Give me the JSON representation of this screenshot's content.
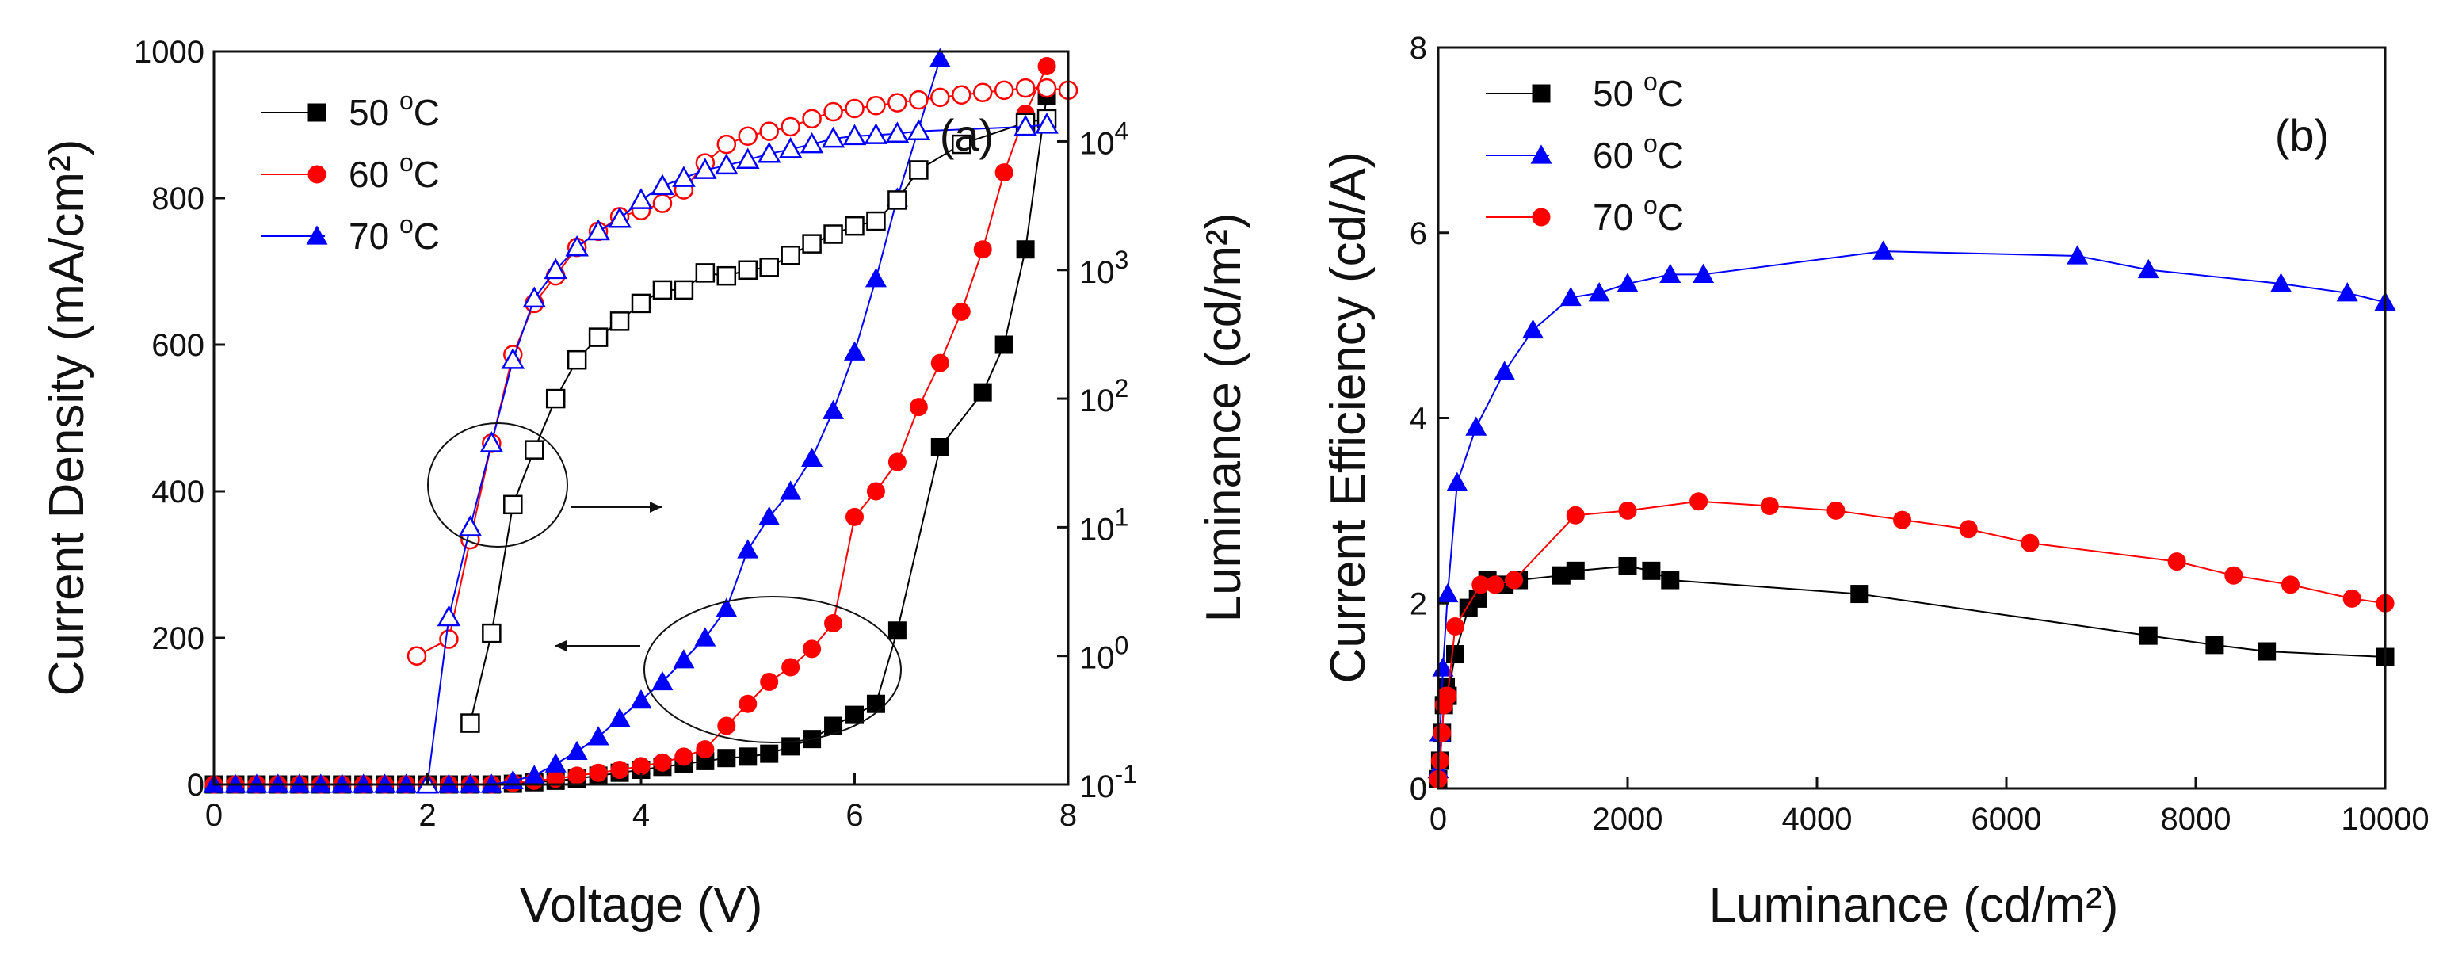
{
  "chart_data": [
    {
      "panel": "(a)",
      "type": "line",
      "xlabel": "Voltage (V)",
      "ylabel_left": "Current Density (mA/cm²)",
      "ylabel_right": "Luminance (cd/m²)",
      "xlim": [
        0,
        8
      ],
      "ylim_left": [
        0,
        1000
      ],
      "ylim_right_log": [
        0.1,
        50000
      ],
      "x_ticks": [
        "0",
        "2",
        "4",
        "6",
        "8"
      ],
      "y_left_ticks": [
        "0",
        "200",
        "400",
        "600",
        "800",
        "1000"
      ],
      "y_right_ticks": [
        {
          "base": "10",
          "exp": "-1",
          "value": 0.1
        },
        {
          "base": "10",
          "exp": "0",
          "value": 1
        },
        {
          "base": "10",
          "exp": "1",
          "value": 10
        },
        {
          "base": "10",
          "exp": "2",
          "value": 100
        },
        {
          "base": "10",
          "exp": "3",
          "value": 1000
        },
        {
          "base": "10",
          "exp": "4",
          "value": 10000
        }
      ],
      "legend": [
        {
          "label": "50 ",
          "sup": "o",
          "unit": "C",
          "color": "#000000",
          "marker": "square"
        },
        {
          "label": "60 ",
          "sup": "o",
          "unit": "C",
          "color": "#ff0000",
          "marker": "circle"
        },
        {
          "label": "70 ",
          "sup": "o",
          "unit": "C",
          "color": "#0000ff",
          "marker": "triangle"
        }
      ],
      "series_current_density": [
        {
          "name": "50 oC",
          "color": "#000000",
          "marker": "square",
          "x": [
            0,
            0.2,
            0.4,
            0.6,
            0.8,
            1.0,
            1.2,
            1.4,
            1.6,
            1.8,
            2.0,
            2.2,
            2.4,
            2.6,
            2.8,
            3.0,
            3.2,
            3.4,
            3.6,
            3.8,
            4.0,
            4.2,
            4.4,
            4.6,
            4.8,
            5.0,
            5.2,
            5.4,
            5.6,
            5.8,
            6.0,
            6.2,
            6.4,
            6.8,
            7.2,
            7.4,
            7.6,
            7.8
          ],
          "y": [
            0,
            0,
            0,
            0,
            0,
            0,
            0,
            0,
            0,
            0,
            0,
            0,
            0,
            0,
            1,
            3,
            5,
            8,
            12,
            16,
            20,
            24,
            28,
            32,
            36,
            38,
            42,
            52,
            62,
            80,
            95,
            110,
            210,
            460,
            535,
            600,
            730,
            940
          ]
        },
        {
          "name": "60 oC",
          "color": "#ff0000",
          "marker": "circle",
          "x": [
            0,
            0.2,
            0.4,
            0.6,
            0.8,
            1.0,
            1.2,
            1.4,
            1.6,
            1.8,
            2.0,
            2.2,
            2.4,
            2.6,
            2.8,
            3.0,
            3.2,
            3.4,
            3.6,
            3.8,
            4.0,
            4.2,
            4.4,
            4.6,
            4.8,
            5.0,
            5.2,
            5.4,
            5.6,
            5.8,
            6.0,
            6.2,
            6.4,
            6.6,
            6.8,
            7.0,
            7.2,
            7.4,
            7.6,
            7.8
          ],
          "y": [
            0,
            0,
            0,
            0,
            0,
            0,
            0,
            0,
            0,
            0,
            0,
            0,
            0,
            0,
            2,
            5,
            8,
            12,
            16,
            20,
            25,
            30,
            38,
            48,
            80,
            110,
            140,
            160,
            185,
            220,
            365,
            400,
            440,
            515,
            575,
            645,
            730,
            835,
            915,
            980
          ]
        },
        {
          "name": "70 oC",
          "color": "#0000ff",
          "marker": "triangle",
          "x": [
            0,
            0.2,
            0.4,
            0.6,
            0.8,
            1.0,
            1.2,
            1.4,
            1.6,
            1.8,
            2.0,
            2.2,
            2.4,
            2.6,
            2.8,
            3.0,
            3.2,
            3.4,
            3.6,
            3.8,
            4.0,
            4.2,
            4.4,
            4.6,
            4.8,
            5.0,
            5.2,
            5.4,
            5.6,
            5.8,
            6.0,
            6.2,
            6.4,
            6.8
          ],
          "y": [
            0,
            0,
            0,
            0,
            0,
            0,
            0,
            0,
            0,
            0,
            0,
            0,
            0,
            0,
            5,
            12,
            28,
            45,
            65,
            90,
            115,
            140,
            170,
            200,
            240,
            320,
            365,
            400,
            445,
            510,
            590,
            690,
            800,
            990
          ]
        }
      ],
      "series_luminance": [
        {
          "name": "50 oC",
          "color": "#000000",
          "marker": "square-open",
          "x": [
            2.4,
            2.6,
            2.8,
            3.0,
            3.2,
            3.4,
            3.6,
            3.8,
            4.0,
            4.2,
            4.4,
            4.6,
            4.8,
            5.0,
            5.2,
            5.4,
            5.6,
            5.8,
            6.0,
            6.2,
            6.4,
            6.6,
            7.0,
            7.6,
            7.8
          ],
          "y": [
            0.3,
            1.5,
            15,
            40,
            100,
            200,
            300,
            400,
            550,
            700,
            700,
            950,
            900,
            1000,
            1050,
            1300,
            1600,
            1900,
            2200,
            2400,
            3500,
            6000,
            9500,
            14000,
            15000
          ]
        },
        {
          "name": "60 oC",
          "color": "#ff0000",
          "marker": "circle-open",
          "x": [
            1.9,
            2.2,
            2.4,
            2.6,
            2.8,
            3.0,
            3.2,
            3.4,
            3.6,
            3.8,
            4.0,
            4.2,
            4.4,
            4.6,
            4.8,
            5.0,
            5.2,
            5.4,
            5.6,
            5.8,
            6.0,
            6.2,
            6.4,
            6.6,
            6.8,
            7.0,
            7.2,
            7.4,
            7.6,
            7.8,
            8.0
          ],
          "y": [
            1.0,
            1.35,
            8,
            45,
            220,
            550,
            900,
            1500,
            2000,
            2600,
            2900,
            3300,
            4200,
            6800,
            9500,
            11000,
            12000,
            13000,
            15000,
            17000,
            18000,
            19000,
            20000,
            21000,
            22000,
            23000,
            24000,
            25000,
            26000,
            26000,
            25000
          ]
        },
        {
          "name": "70 oC",
          "color": "#0000ff",
          "marker": "triangle-open",
          "x": [
            2.0,
            2.2,
            2.4,
            2.6,
            2.8,
            3.0,
            3.2,
            3.4,
            3.6,
            3.8,
            4.0,
            4.2,
            4.4,
            4.6,
            4.8,
            5.0,
            5.2,
            5.4,
            5.6,
            5.8,
            6.0,
            6.2,
            6.4,
            6.6,
            7.6,
            7.8
          ],
          "y": [
            0.1,
            2.0,
            10,
            45,
            200,
            600,
            1000,
            1500,
            2000,
            2500,
            3500,
            4500,
            5200,
            6000,
            6500,
            7200,
            8000,
            8700,
            9500,
            10500,
            11000,
            11200,
            11500,
            12000,
            13000,
            13500
          ]
        }
      ],
      "annotations": [
        {
          "type": "ellipse",
          "arrow": "right",
          "meaning": "open symbols refer to luminance (right axis)"
        },
        {
          "type": "ellipse",
          "arrow": "left",
          "meaning": "filled symbols refer to current density (left axis)"
        }
      ]
    },
    {
      "panel": "(b)",
      "type": "line",
      "xlabel": "Luminance (cd/m²)",
      "ylabel": "Current Efficiency (cd/A)",
      "xlim": [
        0,
        10000
      ],
      "ylim": [
        0,
        8
      ],
      "x_ticks": [
        "0",
        "2000",
        "4000",
        "6000",
        "8000",
        "10000"
      ],
      "y_ticks": [
        "0",
        "2",
        "4",
        "6",
        "8"
      ],
      "legend": [
        {
          "label": "50 ",
          "sup": "o",
          "unit": "C",
          "color": "#000000",
          "marker": "square"
        },
        {
          "label": "60 ",
          "sup": "o",
          "unit": "C",
          "color": "#0000ff",
          "marker": "triangle"
        },
        {
          "label": "70 ",
          "sup": "o",
          "unit": "C",
          "color": "#ff0000",
          "marker": "circle"
        }
      ],
      "series": [
        {
          "name": "50 oC",
          "color": "#000000",
          "marker": "square",
          "x": [
            0,
            20,
            40,
            60,
            80,
            100,
            180,
            320,
            420,
            520,
            700,
            850,
            1300,
            1450,
            2000,
            2250,
            2450,
            4450,
            7500,
            8200,
            8750,
            10000
          ],
          "y": [
            0.1,
            0.3,
            0.6,
            0.9,
            1.1,
            1.0,
            1.45,
            1.95,
            2.05,
            2.25,
            2.2,
            2.25,
            2.3,
            2.35,
            2.4,
            2.35,
            2.25,
            2.1,
            1.65,
            1.55,
            1.48,
            1.42
          ]
        },
        {
          "name": "60 oC",
          "color": "#0000ff",
          "marker": "triangle",
          "x": [
            0,
            20,
            50,
            100,
            200,
            400,
            700,
            1000,
            1400,
            1700,
            2000,
            2450,
            2800,
            4700,
            6750,
            7500,
            8900,
            9600,
            10000
          ],
          "y": [
            0.2,
            0.6,
            1.3,
            2.1,
            3.3,
            3.9,
            4.5,
            4.95,
            5.3,
            5.35,
            5.45,
            5.55,
            5.55,
            5.8,
            5.75,
            5.6,
            5.45,
            5.35,
            5.25
          ]
        },
        {
          "name": "70 oC",
          "color": "#ff0000",
          "marker": "circle",
          "x": [
            0,
            20,
            40,
            60,
            80,
            100,
            180,
            450,
            600,
            800,
            1450,
            2000,
            2750,
            3500,
            4200,
            4900,
            5600,
            6250,
            7800,
            8400,
            9000,
            9650,
            10000
          ],
          "y": [
            0.1,
            0.3,
            0.6,
            0.9,
            1.0,
            1.0,
            1.75,
            2.2,
            2.2,
            2.25,
            2.95,
            3.0,
            3.1,
            3.05,
            3.0,
            2.9,
            2.8,
            2.65,
            2.45,
            2.3,
            2.2,
            2.05,
            2.0
          ]
        }
      ]
    }
  ]
}
